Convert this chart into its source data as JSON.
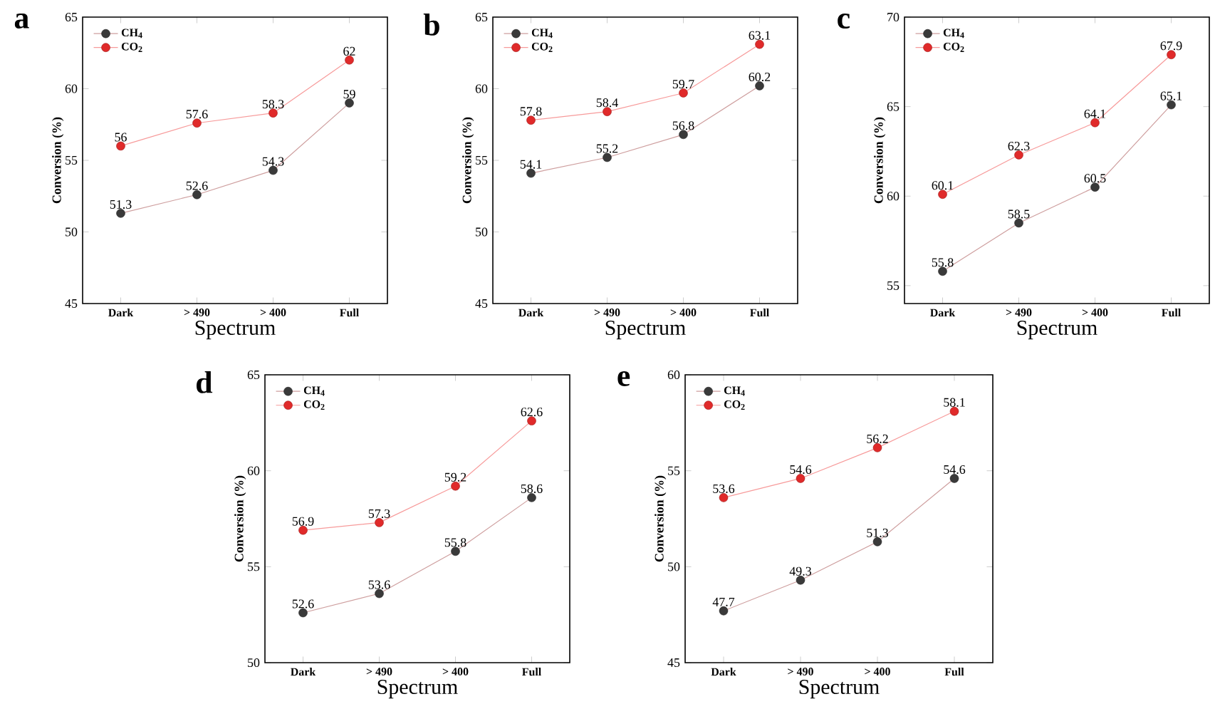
{
  "chart_data": [
    {
      "type": "line",
      "title": "a",
      "xlabel": "Spectrum",
      "ylabel": "Conversion (%)",
      "categories": [
        "Dark",
        "> 490",
        "> 400",
        "Full"
      ],
      "ylim": [
        45,
        65
      ],
      "yticks": [
        45,
        50,
        55,
        60,
        65
      ],
      "legend": "top left",
      "marker": "circle",
      "line_style": "solid",
      "data_labels": true,
      "grid": false,
      "series": [
        {
          "name": "CH$_{4}$",
          "color": "#3a3a3a",
          "values": [
            51.3,
            52.6,
            54.3,
            59
          ]
        },
        {
          "name": "CO$_{2}$",
          "color": "#e02a2a",
          "values": [
            56,
            57.6,
            58.3,
            62
          ]
        }
      ]
    },
    {
      "type": "line",
      "title": "b",
      "xlabel": "Spectrum",
      "ylabel": "Conversion (%)",
      "categories": [
        "Dark",
        "> 490",
        "> 400",
        "Full"
      ],
      "ylim": [
        45,
        65
      ],
      "yticks": [
        45,
        50,
        55,
        60,
        65
      ],
      "legend": "top left",
      "marker": "circle",
      "line_style": "solid",
      "data_labels": true,
      "grid": false,
      "series": [
        {
          "name": "CH$_{4}$",
          "color": "#3a3a3a",
          "values": [
            54.1,
            55.2,
            56.8,
            60.2
          ]
        },
        {
          "name": "CO$_{2}$",
          "color": "#e02a2a",
          "values": [
            57.8,
            58.4,
            59.7,
            63.1
          ]
        }
      ]
    },
    {
      "type": "line",
      "title": "c",
      "xlabel": "Spectrum",
      "ylabel": "Conversion (%)",
      "categories": [
        "Dark",
        "> 490",
        "> 400",
        "Full"
      ],
      "ylim": [
        54,
        70
      ],
      "yticks": [
        55,
        60,
        65,
        70
      ],
      "legend": "top left",
      "marker": "circle",
      "line_style": "solid",
      "data_labels": true,
      "grid": false,
      "series": [
        {
          "name": "CH$_{4}$",
          "color": "#3a3a3a",
          "values": [
            55.8,
            58.5,
            60.5,
            65.1
          ]
        },
        {
          "name": "CO$_{2}$",
          "color": "#e02a2a",
          "values": [
            60.1,
            62.3,
            64.1,
            67.9
          ]
        }
      ]
    },
    {
      "type": "line",
      "title": "d",
      "xlabel": "Spectrum",
      "ylabel": "Conversion (%)",
      "categories": [
        "Dark",
        "> 490",
        "> 400",
        "Full"
      ],
      "ylim": [
        50,
        65
      ],
      "yticks": [
        50,
        55,
        60,
        65
      ],
      "legend": "top left",
      "marker": "circle",
      "line_style": "solid",
      "data_labels": true,
      "grid": false,
      "series": [
        {
          "name": "CH$_{4}$",
          "color": "#3a3a3a",
          "values": [
            52.6,
            53.6,
            55.8,
            58.6
          ]
        },
        {
          "name": "CO$_{2}$",
          "color": "#e02a2a",
          "values": [
            56.9,
            57.3,
            59.2,
            62.6
          ]
        }
      ]
    },
    {
      "type": "line",
      "title": "e",
      "xlabel": "Spectrum",
      "ylabel": "Conversion (%)",
      "categories": [
        "Dark",
        "> 490",
        "> 400",
        "Full"
      ],
      "ylim": [
        45,
        60
      ],
      "yticks": [
        45,
        50,
        55,
        60
      ],
      "legend": "top left",
      "marker": "circle",
      "line_style": "solid",
      "data_labels": true,
      "grid": false,
      "series": [
        {
          "name": "CH$_{4}$",
          "color": "#3a3a3a",
          "values": [
            47.7,
            49.3,
            51.3,
            54.6
          ]
        },
        {
          "name": "CO$_{2}$",
          "color": "#e02a2a",
          "values": [
            53.6,
            54.6,
            56.2,
            58.1
          ]
        }
      ]
    }
  ]
}
